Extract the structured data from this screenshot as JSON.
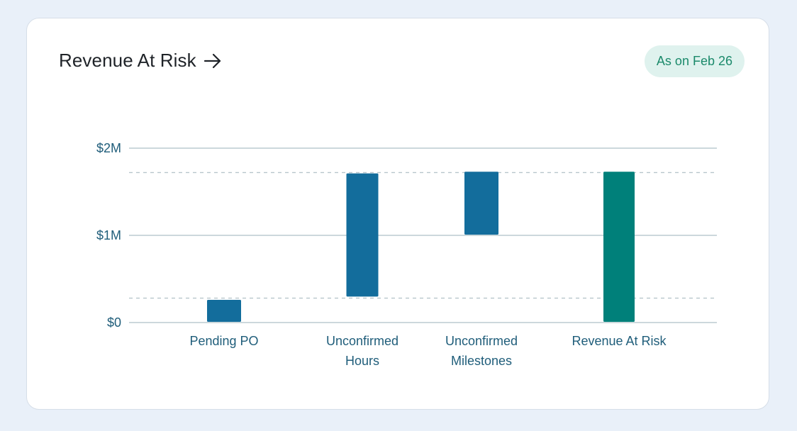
{
  "header": {
    "title": "Revenue At Risk",
    "arrow_icon": "arrow-right-icon",
    "as_of_label": "As on Feb 26"
  },
  "colors": {
    "bar_primary": "#136d9c",
    "bar_total": "#00807a",
    "grid": "#aec0c6",
    "reference": "#b7c5cb",
    "tick_text": "#1f5d7a"
  },
  "chart_data": {
    "type": "bar",
    "subtype": "waterfall",
    "title": "Revenue At Risk",
    "xlabel": "",
    "ylabel": "",
    "ylim": [
      0,
      2000000
    ],
    "y_ticks": [
      {
        "value": 0,
        "label": "$0"
      },
      {
        "value": 1000000,
        "label": "$1M"
      },
      {
        "value": 2000000,
        "label": "$2M"
      }
    ],
    "grid": true,
    "categories": [
      [
        "Pending PO"
      ],
      [
        "Unconfirmed",
        "Hours"
      ],
      [
        "Unconfirmed",
        "Milestones"
      ],
      [
        "Revenue At Risk"
      ]
    ],
    "bars": [
      {
        "start": 0,
        "end": 260000,
        "kind": "step"
      },
      {
        "start": 290000,
        "end": 1710000,
        "kind": "step"
      },
      {
        "start": 1000000,
        "end": 1730000,
        "kind": "step"
      },
      {
        "start": 0,
        "end": 1730000,
        "kind": "total"
      }
    ],
    "reference_lines": [
      280000,
      1720000
    ]
  }
}
